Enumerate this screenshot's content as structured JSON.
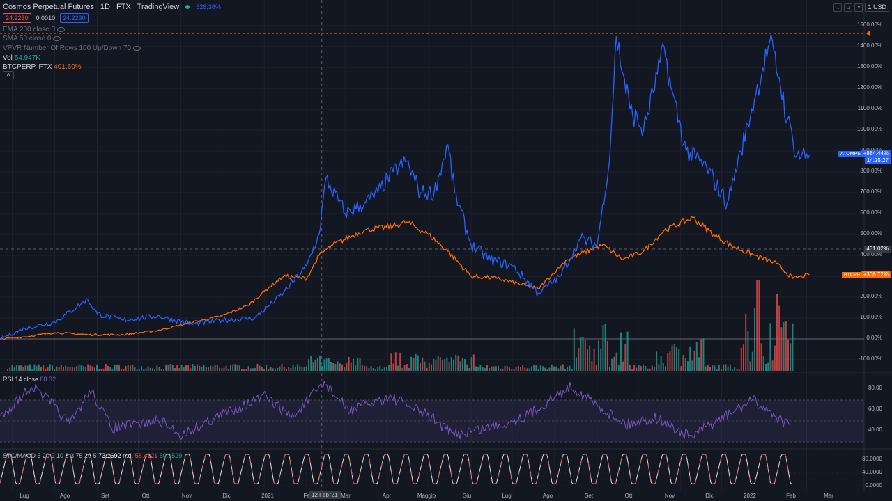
{
  "header": {
    "symbol": "Cosmos Perpetual Futures",
    "interval": "1D",
    "exchange": "FTX",
    "source": "TradingView",
    "change": "628.38%",
    "bid": "24.2230",
    "spread": "0.0010",
    "ask": "24.2230",
    "currency": "1 USD"
  },
  "indicators": {
    "ema200": "EMA 200 close 0",
    "sma50": "SMA 50 close 0",
    "vpvr": "VPVR Number Of Rows 100 Up/Down 70",
    "vol_label": "Vol",
    "vol_value": "54.947K",
    "compare_symbol": "BTCPERP, FTX",
    "compare_value": "401.60%",
    "rsi_label": "RSI 14 close",
    "rsi_value": "88.32",
    "stc_label": "STC/MACD 5 20 9 10 3 3 75 20 5",
    "stc_v1": "73.1692",
    "stc_nd": "n.d.",
    "stc_v2": "58.4121",
    "stc_v3": "50.1529"
  },
  "price_axis": [
    "1500.00%",
    "1400.00%",
    "1300.00%",
    "1200.00%",
    "1100.00%",
    "1000.00%",
    "900.00%",
    "800.00%",
    "700.00%",
    "600.00%",
    "500.00%",
    "400.00%",
    "300.00%",
    "200.00%",
    "100.00%",
    "0.00%",
    "-100.00%"
  ],
  "rsi_axis": [
    "80.00",
    "60.00",
    "40.00"
  ],
  "stc_axis": [
    "80.0000",
    "40.0000",
    "0.0000"
  ],
  "tags": {
    "atom_symbol": "ATOMPERP",
    "atom_value": "+884.44%",
    "atom_time": "14:25:27",
    "cross_value": "431.02%",
    "btc_symbol": "BTCPERP",
    "btc_value": "+306.72%"
  },
  "time_axis": [
    "Lug",
    "Ago",
    "Set",
    "Ott",
    "Nov",
    "Dic",
    "2021",
    "Fe",
    "Mar",
    "Apr",
    "Maggio",
    "Giu",
    "Lug",
    "Ago",
    "Set",
    "Ott",
    "Nov",
    "Dic",
    "2022",
    "Feb",
    "Mar"
  ],
  "crosshair_date": "12 Feb '21",
  "colors": {
    "background": "#131722",
    "atom": "#2962ff",
    "btc": "#ff6d00",
    "vol_up": "#26a69a",
    "vol_down": "#ef5350",
    "rsi": "#7e57c2",
    "stc": "#ef5350"
  },
  "chart_data": {
    "type": "line",
    "x_range": [
      "2020-06-22",
      "2022-03-15"
    ],
    "ylim": [
      -150,
      1550
    ],
    "y_unit": "%",
    "series": [
      {
        "name": "ATOMPERP",
        "x": [
          "2020-06-22",
          "2020-07-10",
          "2020-08-01",
          "2020-08-25",
          "2020-09-01",
          "2020-09-20",
          "2020-10-15",
          "2020-11-10",
          "2020-12-01",
          "2020-12-25",
          "2021-01-15",
          "2021-02-01",
          "2021-02-10",
          "2021-02-15",
          "2021-03-01",
          "2021-03-15",
          "2021-03-25",
          "2021-04-05",
          "2021-04-15",
          "2021-04-25",
          "2021-05-05",
          "2021-05-15",
          "2021-05-20",
          "2021-06-01",
          "2021-06-15",
          "2021-07-01",
          "2021-07-20",
          "2021-08-05",
          "2021-08-20",
          "2021-09-01",
          "2021-09-10",
          "2021-09-15",
          "2021-09-25",
          "2021-10-05",
          "2021-10-20",
          "2021-10-25",
          "2021-11-05",
          "2021-11-20",
          "2021-12-05",
          "2021-12-15",
          "2021-12-25",
          "2022-01-05",
          "2022-01-12",
          "2022-01-18",
          "2022-01-25",
          "2022-02-03"
        ],
        "y": [
          0,
          50,
          80,
          190,
          120,
          90,
          110,
          70,
          90,
          100,
          220,
          350,
          500,
          770,
          600,
          650,
          700,
          800,
          850,
          700,
          700,
          930,
          700,
          450,
          380,
          350,
          220,
          300,
          480,
          450,
          850,
          1450,
          1100,
          1000,
          1400,
          1200,
          900,
          820,
          650,
          900,
          1150,
          1420,
          1250,
          1050,
          880,
          880
        ]
      },
      {
        "name": "BTCPERP",
        "x": [
          "2020-06-22",
          "2020-07-10",
          "2020-08-01",
          "2020-08-25",
          "2020-09-20",
          "2020-10-15",
          "2020-11-10",
          "2020-12-01",
          "2020-12-20",
          "2021-01-05",
          "2021-01-15",
          "2021-02-01",
          "2021-02-10",
          "2021-02-20",
          "2021-03-15",
          "2021-04-05",
          "2021-04-15",
          "2021-05-01",
          "2021-05-15",
          "2021-06-01",
          "2021-06-20",
          "2021-07-20",
          "2021-08-10",
          "2021-09-05",
          "2021-09-20",
          "2021-10-05",
          "2021-10-20",
          "2021-11-10",
          "2021-11-25",
          "2021-12-10",
          "2021-12-25",
          "2022-01-10",
          "2022-01-22",
          "2022-02-03"
        ],
        "y": [
          0,
          10,
          30,
          20,
          20,
          40,
          80,
          110,
          160,
          250,
          300,
          290,
          400,
          450,
          520,
          540,
          560,
          500,
          420,
          300,
          290,
          240,
          380,
          450,
          380,
          420,
          520,
          580,
          500,
          440,
          400,
          360,
          290,
          306.72
        ]
      }
    ]
  }
}
